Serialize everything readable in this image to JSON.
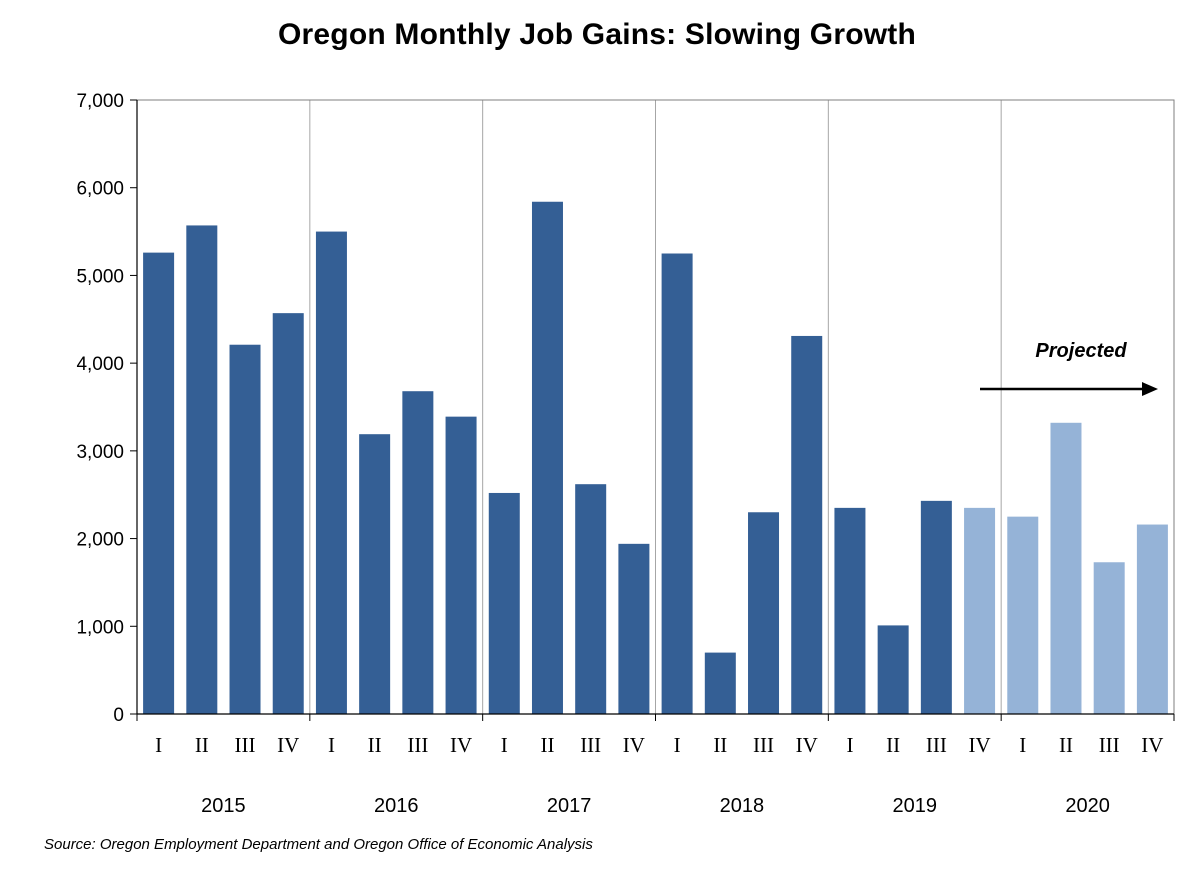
{
  "chart_data": {
    "type": "bar",
    "title": "Oregon Monthly Job Gains: Slowing Growth",
    "source": "Source: Oregon Employment Department and Oregon Office of Economic Analysis",
    "xlabel": "",
    "ylabel": "",
    "ylim": [
      0,
      7000
    ],
    "yticks": [
      0,
      1000,
      2000,
      3000,
      4000,
      5000,
      6000,
      7000
    ],
    "ytick_labels": [
      "0",
      "1,000",
      "2,000",
      "3,000",
      "4,000",
      "5,000",
      "6,000",
      "7,000"
    ],
    "grid": "vertical lines between years",
    "years": [
      "2015",
      "2016",
      "2017",
      "2018",
      "2019",
      "2020"
    ],
    "categories": [
      "I",
      "II",
      "III",
      "IV",
      "I",
      "II",
      "III",
      "IV",
      "I",
      "II",
      "III",
      "IV",
      "I",
      "II",
      "III",
      "IV",
      "I",
      "II",
      "III",
      "IV",
      "I",
      "II",
      "III",
      "IV"
    ],
    "values": [
      5260,
      5570,
      4210,
      4570,
      5500,
      3190,
      3680,
      3390,
      2520,
      5840,
      2620,
      1940,
      5250,
      700,
      2300,
      4310,
      2350,
      1010,
      2430,
      2350,
      2250,
      3320,
      1730,
      2160
    ],
    "projected_start_index": 19,
    "colors": {
      "actual": "#345f95",
      "projected": "#95b3d7"
    },
    "annotation": {
      "label": "Projected"
    }
  }
}
